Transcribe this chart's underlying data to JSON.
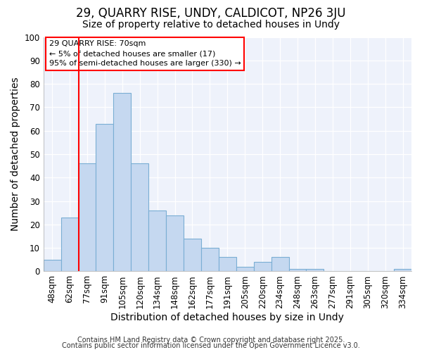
{
  "title1": "29, QUARRY RISE, UNDY, CALDICOT, NP26 3JU",
  "title2": "Size of property relative to detached houses in Undy",
  "xlabel": "Distribution of detached houses by size in Undy",
  "ylabel": "Number of detached properties",
  "categories": [
    "48sqm",
    "62sqm",
    "77sqm",
    "91sqm",
    "105sqm",
    "120sqm",
    "134sqm",
    "148sqm",
    "162sqm",
    "177sqm",
    "191sqm",
    "205sqm",
    "220sqm",
    "234sqm",
    "248sqm",
    "263sqm",
    "277sqm",
    "291sqm",
    "305sqm",
    "320sqm",
    "334sqm"
  ],
  "values": [
    5,
    23,
    46,
    63,
    76,
    46,
    26,
    24,
    14,
    10,
    6,
    2,
    4,
    6,
    1,
    1,
    0,
    0,
    0,
    0,
    1
  ],
  "bar_color": "#c5d8f0",
  "bar_edge_color": "#7aaed4",
  "red_line_index": 2,
  "annotation_box_text": "29 QUARRY RISE: 70sqm\n← 5% of detached houses are smaller (17)\n95% of semi-detached houses are larger (330) →",
  "ylim": [
    0,
    100
  ],
  "yticks": [
    0,
    10,
    20,
    30,
    40,
    50,
    60,
    70,
    80,
    90,
    100
  ],
  "footnote1": "Contains HM Land Registry data © Crown copyright and database right 2025.",
  "footnote2": "Contains public sector information licensed under the Open Government Licence v3.0.",
  "bg_color": "#ffffff",
  "plot_bg_color": "#eef2fb",
  "grid_color": "#ffffff",
  "title1_fontsize": 12,
  "title2_fontsize": 10,
  "axis_label_fontsize": 10,
  "tick_fontsize": 8.5,
  "footnote_fontsize": 7
}
